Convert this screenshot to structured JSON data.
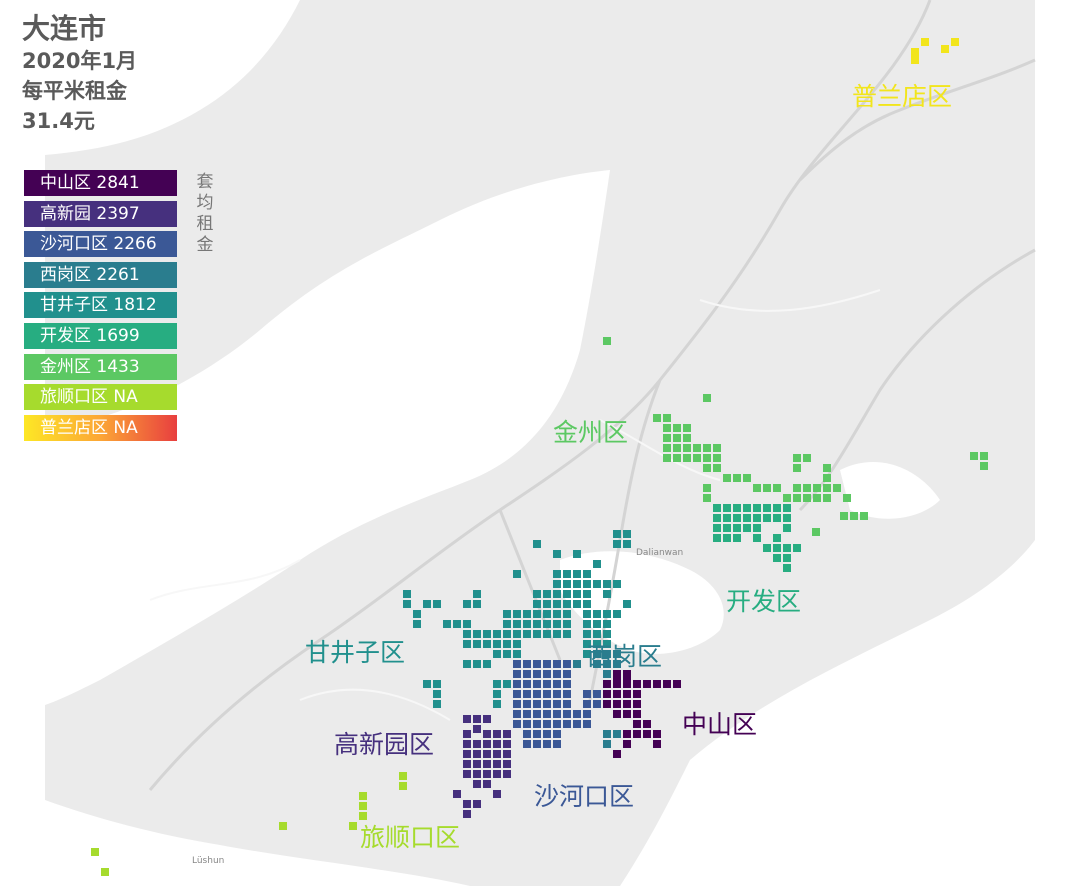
{
  "title": {
    "city": "大连市",
    "period": "2020年1月",
    "metric": "每平米租金",
    "value": "31.4元"
  },
  "legend": {
    "caption": "套均租金",
    "items": [
      {
        "label": "中山区 2841",
        "color": "#440154"
      },
      {
        "label": "高新园 2397",
        "color": "#46307e"
      },
      {
        "label": "沙河口区 2266",
        "color": "#3b5896"
      },
      {
        "label": "西岗区 2261",
        "color": "#2a7d8e"
      },
      {
        "label": "甘井子区 1812",
        "color": "#21908d"
      },
      {
        "label": "开发区 1699",
        "color": "#27ad81"
      },
      {
        "label": "金州区 1433",
        "color": "#5cc863"
      },
      {
        "label": "旅顺口区 NA",
        "color": "#a6db2d"
      },
      {
        "label": "普兰店区 NA",
        "gradient": [
          "#fde725",
          "#fca636",
          "#e83f3f"
        ]
      }
    ]
  },
  "map": {
    "place_labels": [
      "Dalianwan",
      "Lüshun"
    ],
    "districts": [
      {
        "name": "普兰店区",
        "color": "#f2e51c"
      },
      {
        "name": "金州区",
        "color": "#5cc863"
      },
      {
        "name": "开发区",
        "color": "#27ad81"
      },
      {
        "name": "甘井子区",
        "color": "#21908d"
      },
      {
        "name": "西岗区",
        "color": "#2a7d8e"
      },
      {
        "name": "中山区",
        "color": "#440154"
      },
      {
        "name": "高新园区",
        "color": "#46307e"
      },
      {
        "name": "沙河口区",
        "color": "#3b5896"
      },
      {
        "name": "旅顺口区",
        "color": "#a6db2d"
      }
    ]
  }
}
